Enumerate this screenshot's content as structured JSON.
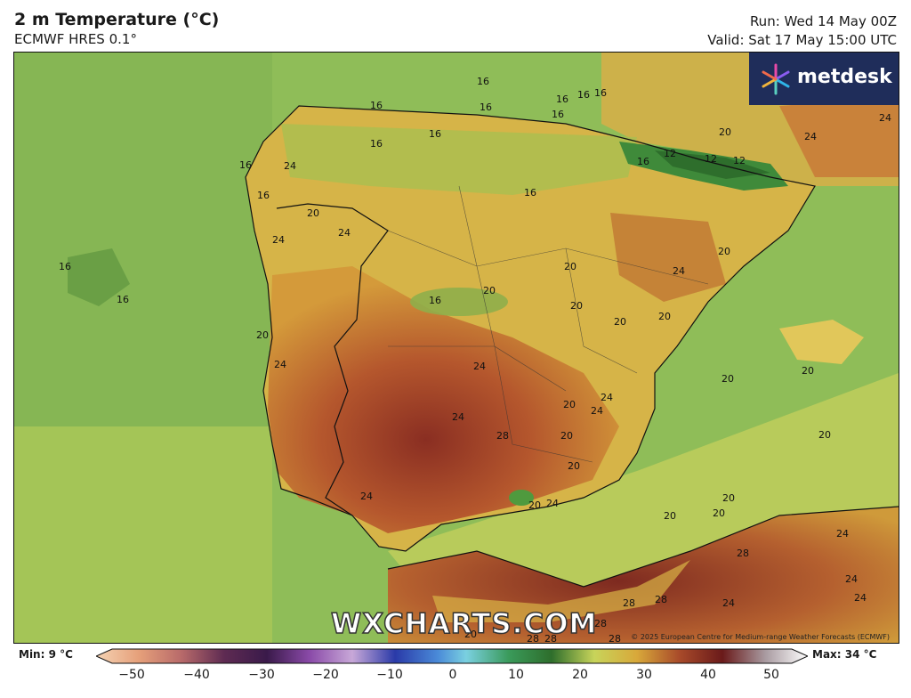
{
  "header": {
    "title": "2 m Temperature (°C)",
    "subtitle": "ECMWF HRES 0.1°",
    "run": "Run: Wed 14 May 00Z",
    "valid": "Valid: Sat 17 May 15:00 UTC"
  },
  "brand": {
    "logo_text": "metdesk",
    "watermark": "WXCHARTS.COM"
  },
  "copyright": "© 2025 European Centre for Medium-range Weather Forecasts (ECMWF)",
  "legend": {
    "min": "Min: 9 °C",
    "max": "Max: 34 °C",
    "ticks": [
      "−50",
      "−40",
      "−30",
      "−20",
      "−10",
      "0",
      "10",
      "20",
      "30",
      "40",
      "50"
    ]
  },
  "contour_labels": {
    "items": [
      "16",
      "16",
      "16",
      "16",
      "16",
      "16",
      "16",
      "16",
      "16",
      "16",
      "16",
      "16",
      "16",
      "16",
      "16",
      "12",
      "12",
      "12",
      "16",
      "20",
      "20",
      "20",
      "20",
      "20",
      "20",
      "20",
      "20",
      "20",
      "20",
      "20",
      "20",
      "20",
      "20",
      "20",
      "20",
      "20",
      "20",
      "20",
      "24",
      "24",
      "24",
      "24",
      "24",
      "24",
      "24",
      "24",
      "24",
      "24",
      "24",
      "24",
      "24",
      "24",
      "24",
      "24",
      "24",
      "28",
      "28",
      "28",
      "28",
      "28",
      "28",
      "28",
      "28",
      "20"
    ]
  },
  "colors": {
    "sea": "#9cc25a",
    "land_warm": "#d7a33a",
    "land_hot": "#a8452a",
    "mountain": "#3f8a3a",
    "logo_bg": "#1f2d5a"
  }
}
